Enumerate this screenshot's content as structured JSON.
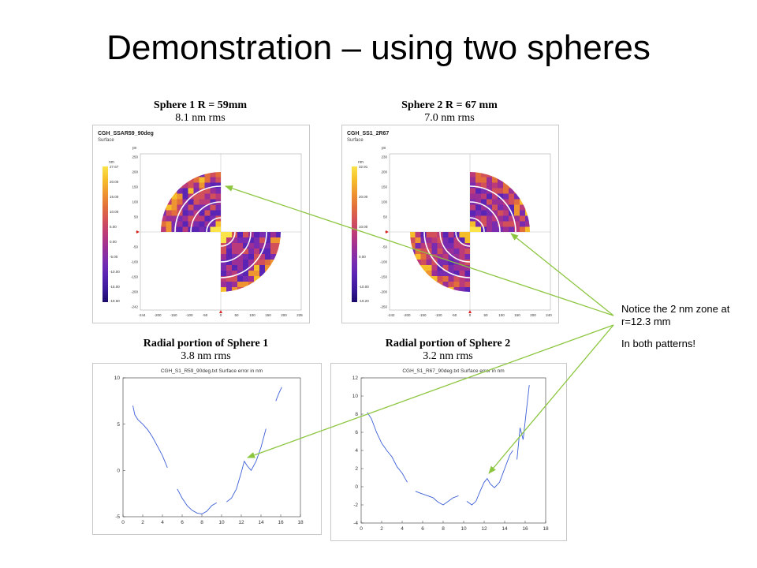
{
  "slide": {
    "title": "Demonstration – using two spheres",
    "note_line1": "Notice the 2 nm zone at r=12.3 mm",
    "note_line2": "In both patterns!"
  },
  "captions": {
    "map1_line1": "Sphere 1    R = 59mm",
    "map1_line2": "8.1 nm rms",
    "map2_line1": "Sphere 2    R = 67 mm",
    "map2_line2": "7.0 nm rms",
    "plot1_line1": "Radial portion of Sphere 1",
    "plot1_line2": "3.8 nm rms",
    "plot2_line1": "Radial portion of Sphere 2",
    "plot2_line2": "3.2 nm rms"
  },
  "colors": {
    "curve": "#3d5fd6",
    "arrow": "#8cc63f"
  },
  "maps": [
    {
      "name": "CGH_SSAR59_90deg",
      "subtitle": "Surface",
      "unit_px": "px",
      "unit_nm": "nm",
      "quadrants": "top-left,bottom-right",
      "colorbar_ticks": [
        "27.67",
        "20.00",
        "15.00",
        "10.00",
        "5.00",
        "0.00",
        "-5.00",
        "-10.00",
        "-15.00"
      ],
      "colorbar_bottom": "-19.60",
      "y_ticks": [
        "250",
        "200",
        "150",
        "100",
        "50",
        "0",
        "-50",
        "-100",
        "-150",
        "-200",
        "-242"
      ],
      "x_ticks": [
        "-244",
        "-200",
        "-150",
        "-100",
        "-50",
        "0",
        "50",
        "100",
        "150",
        "200",
        "235"
      ]
    },
    {
      "name": "CGH_SS1_2R67",
      "subtitle": "Surface",
      "unit_px": "px",
      "unit_nm": "nm",
      "quadrants": "top-right,bottom-left",
      "colorbar_ticks": [
        "32.91",
        "20.00",
        "10.00",
        "0.00",
        "-10.00"
      ],
      "colorbar_bottom": "-19.20",
      "y_ticks": [
        "230",
        "200",
        "150",
        "100",
        "50",
        "0",
        "-50",
        "-100",
        "-150",
        "-200",
        "-250"
      ],
      "x_ticks": [
        "-242",
        "-200",
        "-150",
        "-100",
        "-50",
        "0",
        "50",
        "100",
        "150",
        "200",
        "240"
      ]
    }
  ],
  "chart_data": [
    {
      "type": "line",
      "title": "CGH_S1_R59_90deg.txt  Surface error in nm",
      "xlim": [
        0,
        18
      ],
      "ylim": [
        -5,
        10
      ],
      "x_ticks": [
        "0",
        "2",
        "4",
        "6",
        "8",
        "10",
        "12",
        "14",
        "16",
        "18"
      ],
      "y_ticks": [
        "10",
        "5",
        "0",
        "-5"
      ],
      "segments": [
        [
          [
            1.0,
            7.0
          ],
          [
            1.2,
            6.0
          ],
          [
            1.5,
            5.5
          ],
          [
            2.0,
            5.0
          ],
          [
            2.5,
            4.4
          ],
          [
            3.0,
            3.6
          ],
          [
            3.5,
            2.6
          ],
          [
            4.0,
            1.6
          ],
          [
            4.5,
            0.3
          ]
        ],
        [
          [
            5.5,
            -2.0
          ],
          [
            6.0,
            -3.0
          ],
          [
            6.5,
            -3.8
          ],
          [
            7.0,
            -4.3
          ],
          [
            7.5,
            -4.6
          ],
          [
            8.0,
            -4.7
          ],
          [
            8.5,
            -4.4
          ],
          [
            9.0,
            -3.8
          ],
          [
            9.5,
            -3.5
          ]
        ],
        [
          [
            10.5,
            -3.4
          ],
          [
            11.0,
            -3.0
          ],
          [
            11.5,
            -2.0
          ],
          [
            12.0,
            -0.2
          ],
          [
            12.3,
            1.0
          ],
          [
            12.6,
            0.5
          ],
          [
            13.0,
            0.0
          ],
          [
            13.5,
            1.0
          ],
          [
            14.0,
            2.5
          ],
          [
            14.5,
            4.5
          ]
        ],
        [
          [
            15.5,
            7.5
          ],
          [
            15.8,
            8.3
          ],
          [
            16.1,
            9.0
          ]
        ]
      ]
    },
    {
      "type": "line",
      "title": "CGH_S1_R67_90deg.txt  Surface error in nm",
      "xlim": [
        0,
        18
      ],
      "ylim": [
        -4,
        12
      ],
      "x_ticks": [
        "0",
        "2",
        "4",
        "6",
        "8",
        "10",
        "12",
        "14",
        "16",
        "18"
      ],
      "y_ticks": [
        "12",
        "10",
        "8",
        "6",
        "4",
        "2",
        "0",
        "-2",
        "-4"
      ],
      "segments": [
        [
          [
            0.6,
            8.2
          ],
          [
            1.0,
            7.5
          ],
          [
            1.5,
            6.0
          ],
          [
            2.0,
            4.8
          ],
          [
            2.5,
            4.0
          ],
          [
            3.0,
            3.3
          ],
          [
            3.5,
            2.2
          ],
          [
            4.0,
            1.5
          ],
          [
            4.5,
            0.5
          ]
        ],
        [
          [
            5.3,
            -0.5
          ],
          [
            6.0,
            -0.8
          ],
          [
            7.0,
            -1.2
          ],
          [
            7.5,
            -1.7
          ],
          [
            8.0,
            -2.0
          ],
          [
            8.5,
            -1.6
          ],
          [
            9.0,
            -1.2
          ],
          [
            9.5,
            -1.0
          ]
        ],
        [
          [
            10.3,
            -1.6
          ],
          [
            10.8,
            -2.0
          ],
          [
            11.2,
            -1.6
          ],
          [
            11.6,
            -0.5
          ],
          [
            12.0,
            0.5
          ],
          [
            12.3,
            0.9
          ],
          [
            12.6,
            0.3
          ],
          [
            13.0,
            -0.1
          ],
          [
            13.5,
            0.5
          ],
          [
            14.0,
            2.0
          ],
          [
            14.5,
            3.5
          ],
          [
            14.8,
            4.0
          ]
        ],
        [
          [
            15.2,
            3.0
          ],
          [
            15.5,
            6.5
          ],
          [
            15.8,
            5.2
          ],
          [
            16.1,
            8.2
          ],
          [
            16.4,
            11.2
          ]
        ]
      ]
    }
  ]
}
